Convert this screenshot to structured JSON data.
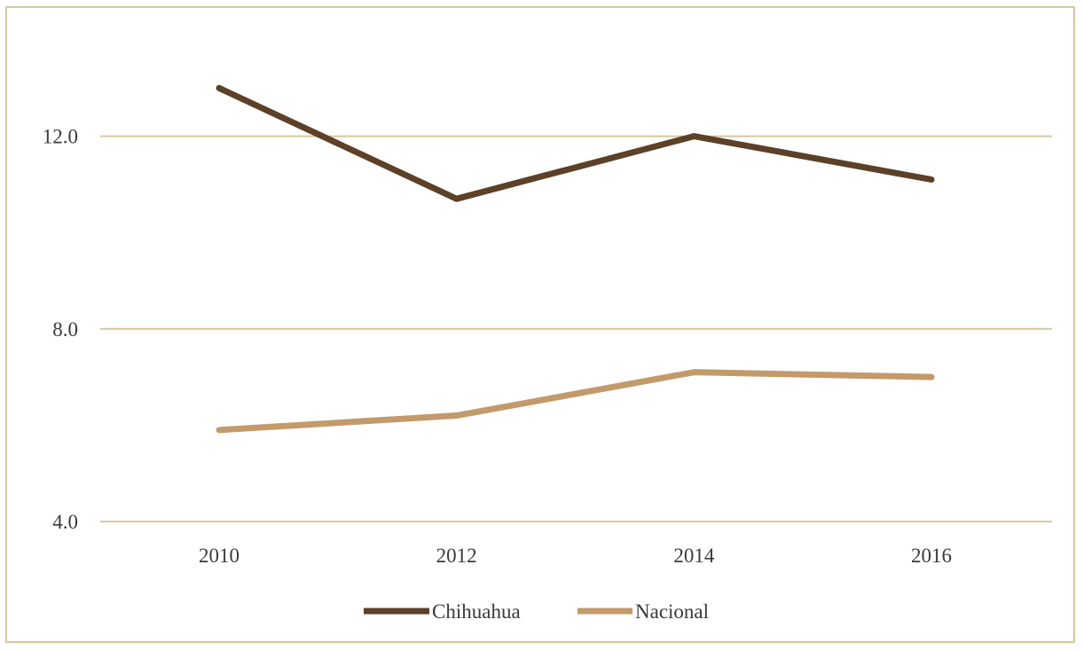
{
  "chart_data": {
    "type": "line",
    "categories": [
      "2010",
      "2012",
      "2014",
      "2016"
    ],
    "series": [
      {
        "name": "Chihuahua",
        "values": [
          13.0,
          10.7,
          12.0,
          11.1
        ],
        "color": "#5c4027"
      },
      {
        "name": "Nacional",
        "values": [
          5.9,
          6.2,
          7.1,
          7.0
        ],
        "color": "#c39a6b"
      }
    ],
    "y_ticks": [
      "4.0",
      "8.0",
      "12.0"
    ],
    "y_tick_values": [
      4,
      8,
      12
    ],
    "ylim": [
      4,
      12.95
    ],
    "grid": true,
    "legend_position": "bottom",
    "grid_color": "#d9c6a2"
  }
}
